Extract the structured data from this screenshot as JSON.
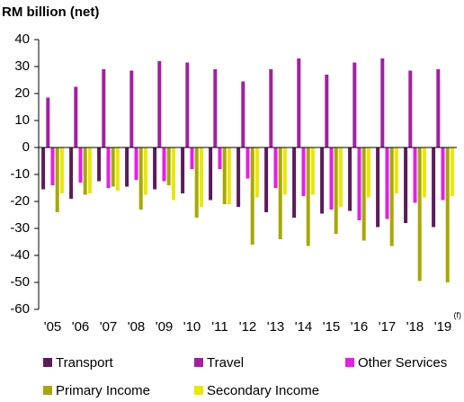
{
  "chart_data": {
    "type": "bar",
    "title": "RM billion (net)",
    "categories": [
      "'05",
      "'06",
      "'07",
      "'08",
      "'09",
      "'10",
      "'11",
      "'12",
      "'13",
      "'14",
      "'15",
      "'16",
      "'17",
      "'18",
      "'19"
    ],
    "x_annotation": "(f)",
    "series": [
      {
        "name": "Transport",
        "color": "#5c1a5c",
        "values": [
          -15.5,
          -19,
          -12.5,
          -14.5,
          -15.5,
          -17,
          -19.5,
          -22,
          -24,
          -26,
          -24.5,
          -23.5,
          -29.5,
          -28,
          -29.5
        ]
      },
      {
        "name": "Travel",
        "color": "#a31fa3",
        "values": [
          18.5,
          22.5,
          29,
          28.5,
          32,
          31.5,
          29,
          24.5,
          29,
          33,
          27,
          31.5,
          33,
          28.5,
          29
        ]
      },
      {
        "name": "Other Services",
        "color": "#e61ee6",
        "values": [
          -14,
          -13,
          -15,
          -12,
          -12.5,
          -8,
          -8,
          -11.5,
          -15,
          -18,
          -23,
          -27,
          -26.5,
          -20.5,
          -19.5
        ]
      },
      {
        "name": "Primary Income",
        "color": "#a8a800",
        "values": [
          -24,
          -17.5,
          -14.5,
          -23,
          -14,
          -26,
          -21,
          -36,
          -34,
          -36.5,
          -32,
          -34.5,
          -36.5,
          -49.5,
          -50
        ]
      },
      {
        "name": "Secondary Income",
        "color": "#e8e800",
        "values": [
          -17,
          -17,
          -16,
          -17.5,
          -19.5,
          -22,
          -21,
          -18.5,
          -17.5,
          -17.5,
          -22,
          -18.5,
          -17,
          -18.5,
          -18
        ]
      }
    ],
    "ylim": [
      -60,
      40
    ],
    "yticks": [
      -60,
      -50,
      -40,
      -30,
      -20,
      -10,
      0,
      10,
      20,
      30,
      40
    ]
  }
}
